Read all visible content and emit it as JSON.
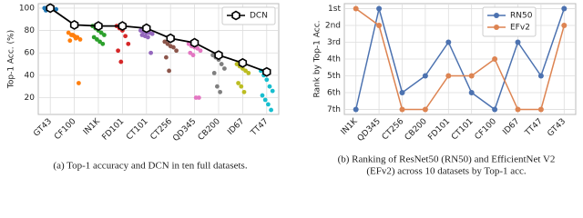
{
  "chart_data": [
    {
      "type": "strip",
      "caption": [
        "(a) Top-1 accuracy and DCN in ten full datasets."
      ],
      "ylabel": "Top-1 Acc. (%)",
      "categories": [
        "GT43",
        "CF100",
        "IN1K",
        "FD101",
        "CT101",
        "CT256",
        "QD345",
        "CB200",
        "ID67",
        "TT47"
      ],
      "groups": [
        {
          "color": "#1f77b4",
          "values": [
            100,
            100,
            100,
            99,
            99,
            98,
            100
          ]
        },
        {
          "color": "#ff7f0e",
          "values": [
            78,
            76,
            75,
            74,
            72,
            71,
            76,
            73,
            33
          ]
        },
        {
          "color": "#2ca02c",
          "values": [
            84,
            82,
            80,
            78,
            76,
            74,
            72,
            70,
            68
          ]
        },
        {
          "color": "#d62728",
          "values": [
            84,
            82,
            80,
            75,
            68,
            62,
            52
          ]
        },
        {
          "color": "#9467bd",
          "values": [
            80,
            79,
            78,
            78,
            77,
            76,
            75,
            74,
            60
          ]
        },
        {
          "color": "#8c564b",
          "values": [
            70,
            68,
            66,
            65,
            62,
            56,
            44
          ]
        },
        {
          "color": "#e377c2",
          "values": [
            68,
            66,
            65,
            64,
            62,
            60,
            58,
            20,
            20
          ]
        },
        {
          "color": "#7f7f7f",
          "values": [
            58,
            56,
            54,
            50,
            46,
            42,
            30,
            25
          ]
        },
        {
          "color": "#bcbd22",
          "values": [
            50,
            48,
            46,
            44,
            42,
            33,
            30,
            25
          ]
        },
        {
          "color": "#17becf",
          "values": [
            44,
            40,
            36,
            30,
            26,
            22,
            18,
            14,
            9
          ]
        }
      ],
      "series": [
        {
          "name": "DCN",
          "color": "#000000",
          "values": [
            100,
            85,
            84,
            84,
            82,
            73,
            69,
            58,
            51,
            43
          ]
        }
      ],
      "ylim": [
        5,
        104
      ],
      "yticks": [
        20,
        40,
        60,
        80,
        100
      ],
      "grid": true,
      "legend": "upper right"
    },
    {
      "type": "line",
      "caption": [
        "(b) Ranking of ResNet50 (RN50) and EfficientNet V2",
        "(EFv2) across 10 datasets by Top-1 acc."
      ],
      "ylabel": "Rank by Top-1 Acc.",
      "categories": [
        "IN1K",
        "QD345",
        "CT256",
        "CB200",
        "FD101",
        "CT101",
        "CF100",
        "ID67",
        "TT47",
        "GT43"
      ],
      "series": [
        {
          "name": "RN50",
          "color": "#4c72b0",
          "values": [
            7,
            1,
            6,
            5,
            3,
            6,
            7,
            3,
            5,
            1
          ]
        },
        {
          "name": "EFv2",
          "color": "#dd8452",
          "values": [
            1,
            2,
            7,
            7,
            5,
            5,
            4,
            7,
            7,
            2
          ]
        }
      ],
      "ylim": [
        7.3,
        0.7
      ],
      "yticks": [
        {
          "value": 1,
          "label": "1st"
        },
        {
          "value": 2,
          "label": "2nd"
        },
        {
          "value": 3,
          "label": "3rd"
        },
        {
          "value": 4,
          "label": "4th"
        },
        {
          "value": 5,
          "label": "5th"
        },
        {
          "value": 6,
          "label": "6th"
        },
        {
          "value": 7,
          "label": "7th"
        }
      ],
      "grid": true,
      "legend": "upper right"
    }
  ]
}
